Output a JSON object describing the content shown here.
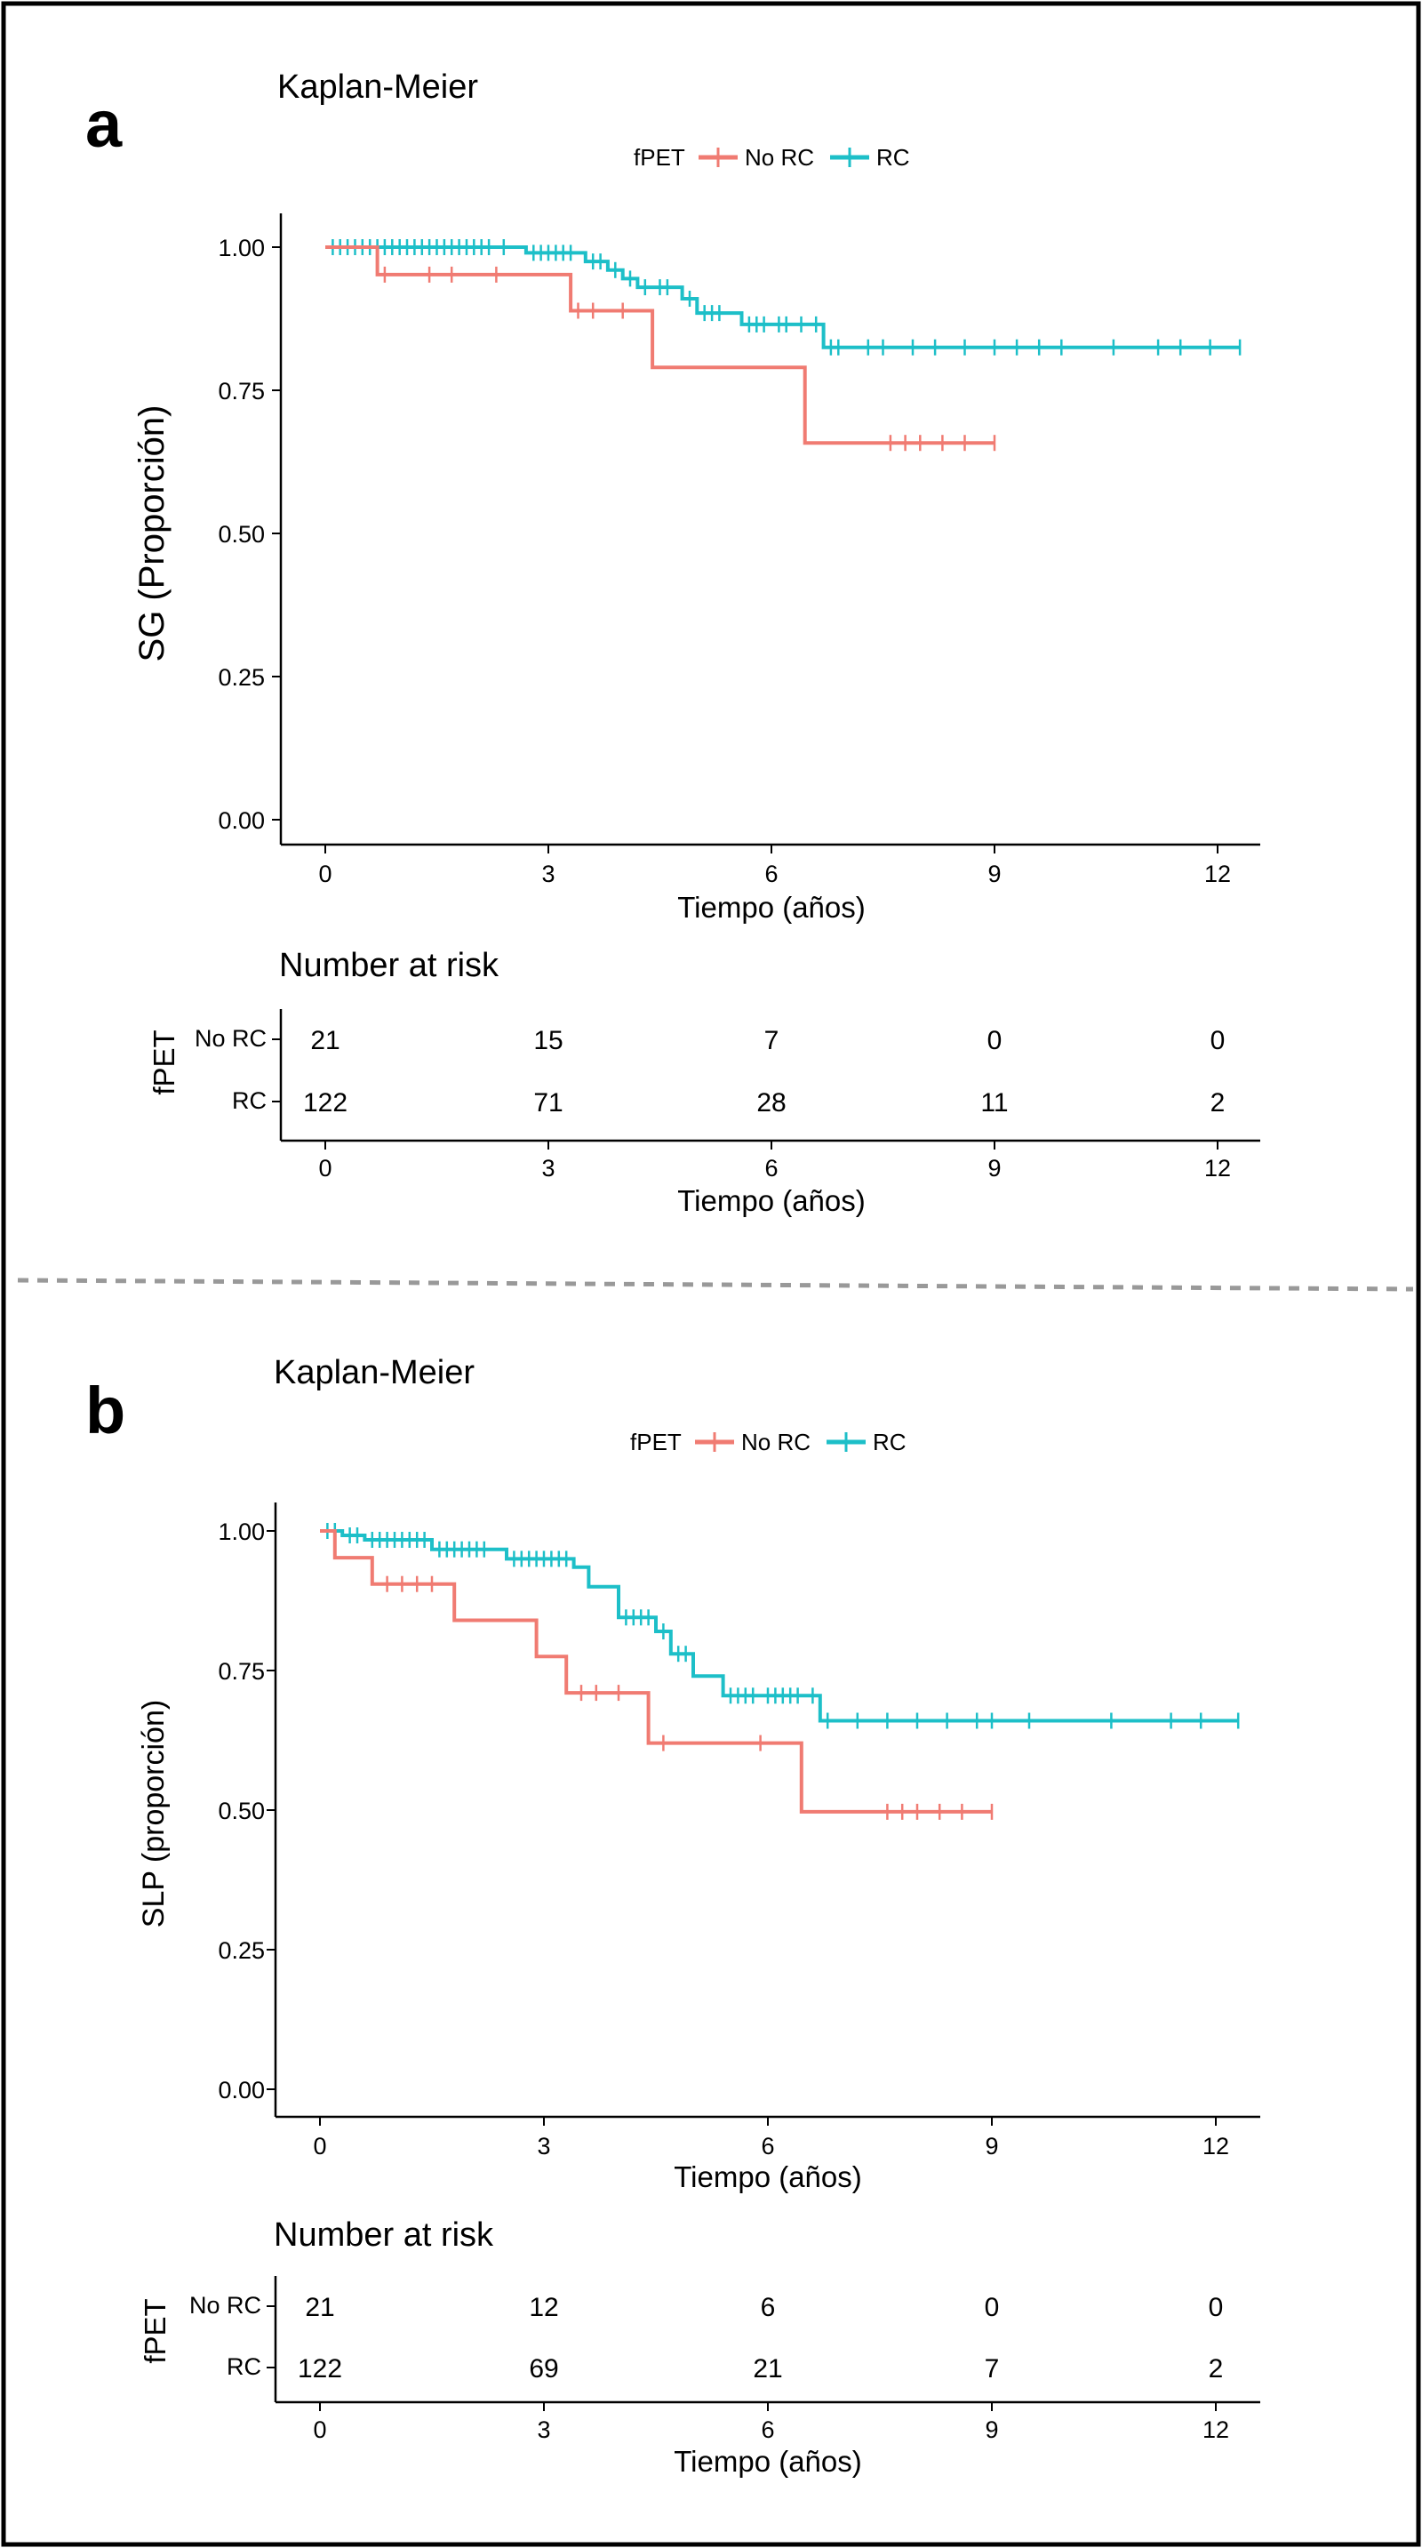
{
  "figure": {
    "colors": {
      "no_rc": "#F07B72",
      "rc": "#1DBFC8",
      "axis": "#000000",
      "separator": "#999999",
      "frame": "#000000"
    }
  },
  "chart_data": [
    {
      "panel_letter": "a",
      "type": "line",
      "subtype": "kaplan-meier step",
      "title": "Kaplan-Meier",
      "legend_title": "fPET",
      "legend": [
        "No RC",
        "RC"
      ],
      "xlabel": "Tiempo (años)",
      "ylabel": "SG (Proporción)",
      "xlim": [
        0,
        12.5
      ],
      "ylim": [
        0,
        1
      ],
      "xticks": [
        "0",
        "3",
        "6",
        "9",
        "12"
      ],
      "yticks": [
        "0.00",
        "0.25",
        "0.50",
        "0.75",
        "1.00"
      ],
      "series": [
        {
          "name": "No RC",
          "steps": [
            [
              0,
              1.0
            ],
            [
              0.7,
              0.952
            ],
            [
              3.3,
              0.889
            ],
            [
              4.4,
              0.79
            ],
            [
              6.45,
              0.658
            ]
          ],
          "end": 9.0,
          "censored": [
            0.8,
            1.4,
            1.7,
            2.3,
            3.4,
            3.6,
            4.0,
            7.6,
            7.8,
            8.0,
            8.3,
            8.6,
            9.0
          ]
        },
        {
          "name": "RC",
          "steps": [
            [
              0,
              1.0
            ],
            [
              2.7,
              0.99
            ],
            [
              3.5,
              0.975
            ],
            [
              3.8,
              0.96
            ],
            [
              4.0,
              0.945
            ],
            [
              4.2,
              0.93
            ],
            [
              4.8,
              0.91
            ],
            [
              5.0,
              0.885
            ],
            [
              5.6,
              0.865
            ],
            [
              6.7,
              0.825
            ]
          ],
          "end": 12.3,
          "censored": [
            0.1,
            0.2,
            0.3,
            0.4,
            0.5,
            0.6,
            0.7,
            0.8,
            0.9,
            1.0,
            1.1,
            1.2,
            1.3,
            1.4,
            1.5,
            1.6,
            1.7,
            1.8,
            1.9,
            2.0,
            2.1,
            2.2,
            2.4,
            2.8,
            2.9,
            3.0,
            3.1,
            3.2,
            3.3,
            3.6,
            3.7,
            3.9,
            4.1,
            4.3,
            4.5,
            4.6,
            4.9,
            5.1,
            5.2,
            5.3,
            5.7,
            5.8,
            5.9,
            6.1,
            6.2,
            6.4,
            6.6,
            6.8,
            6.9,
            7.3,
            7.5,
            7.9,
            8.2,
            8.6,
            9.0,
            9.3,
            9.6,
            9.9,
            10.6,
            11.2,
            11.5,
            11.9,
            12.3
          ]
        }
      ],
      "risk_table": {
        "title": "Number at risk",
        "strata_title": "fPET",
        "xlabel": "Tiempo (años)",
        "times": [
          "0",
          "3",
          "6",
          "9",
          "12"
        ],
        "rows": [
          {
            "label": "No RC",
            "values": [
              "21",
              "15",
              "7",
              "0",
              "0"
            ]
          },
          {
            "label": "RC",
            "values": [
              "122",
              "71",
              "28",
              "11",
              "2"
            ]
          }
        ]
      }
    },
    {
      "panel_letter": "b",
      "type": "line",
      "subtype": "kaplan-meier step",
      "title": "Kaplan-Meier",
      "legend_title": "fPET",
      "legend": [
        "No RC",
        "RC"
      ],
      "xlabel": "Tiempo (años)",
      "ylabel": "SLP (proporción)",
      "xlim": [
        0,
        12.5
      ],
      "ylim": [
        0,
        1
      ],
      "xticks": [
        "0",
        "3",
        "6",
        "9",
        "12"
      ],
      "yticks": [
        "0.00",
        "0.25",
        "0.50",
        "0.75",
        "1.00"
      ],
      "series": [
        {
          "name": "No RC",
          "steps": [
            [
              0,
              1.0
            ],
            [
              0.2,
              0.952
            ],
            [
              0.7,
              0.905
            ],
            [
              1.8,
              0.84
            ],
            [
              2.9,
              0.775
            ],
            [
              3.3,
              0.71
            ],
            [
              4.4,
              0.62
            ],
            [
              6.45,
              0.497
            ]
          ],
          "end": 9.0,
          "censored": [
            0.9,
            1.1,
            1.3,
            1.5,
            3.5,
            3.7,
            4.0,
            4.6,
            5.9,
            7.6,
            7.8,
            8.0,
            8.3,
            8.6,
            9.0
          ]
        },
        {
          "name": "RC",
          "steps": [
            [
              0,
              1.0
            ],
            [
              0.3,
              0.992
            ],
            [
              0.6,
              0.984
            ],
            [
              1.5,
              0.967
            ],
            [
              2.5,
              0.95
            ],
            [
              3.4,
              0.935
            ],
            [
              3.6,
              0.9
            ],
            [
              4.0,
              0.845
            ],
            [
              4.5,
              0.82
            ],
            [
              4.7,
              0.78
            ],
            [
              5.0,
              0.74
            ],
            [
              5.4,
              0.705
            ],
            [
              6.7,
              0.66
            ]
          ],
          "end": 12.3,
          "censored": [
            0.1,
            0.2,
            0.4,
            0.5,
            0.7,
            0.8,
            0.9,
            1.0,
            1.1,
            1.2,
            1.3,
            1.4,
            1.6,
            1.7,
            1.8,
            1.9,
            2.0,
            2.1,
            2.2,
            2.6,
            2.7,
            2.8,
            2.9,
            3.0,
            3.1,
            3.2,
            3.3,
            4.1,
            4.2,
            4.3,
            4.4,
            4.6,
            4.8,
            4.9,
            5.5,
            5.6,
            5.7,
            5.8,
            6.0,
            6.1,
            6.2,
            6.3,
            6.4,
            6.6,
            6.8,
            7.2,
            7.6,
            8.0,
            8.4,
            8.8,
            9.0,
            9.5,
            10.6,
            11.4,
            11.8,
            12.3
          ]
        }
      ],
      "risk_table": {
        "title": "Number at risk",
        "strata_title": "fPET",
        "xlabel": "Tiempo (años)",
        "times": [
          "0",
          "3",
          "6",
          "9",
          "12"
        ],
        "rows": [
          {
            "label": "No RC",
            "values": [
              "21",
              "12",
              "6",
              "0",
              "0"
            ]
          },
          {
            "label": "RC",
            "values": [
              "122",
              "69",
              "21",
              "7",
              "2"
            ]
          }
        ]
      }
    }
  ]
}
